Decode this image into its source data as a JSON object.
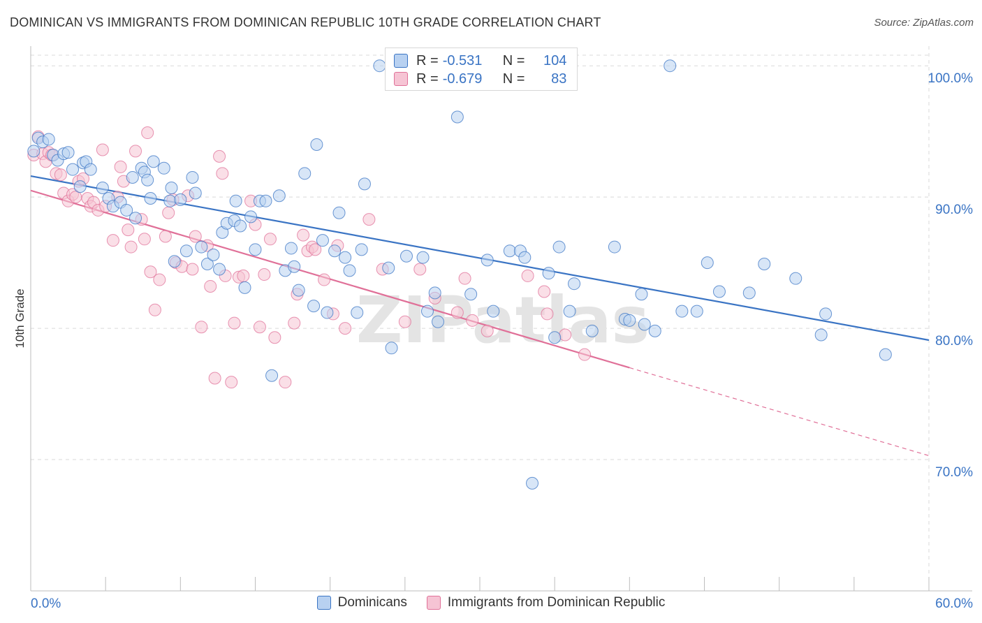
{
  "title": "DOMINICAN VS IMMIGRANTS FROM DOMINICAN REPUBLIC 10TH GRADE CORRELATION CHART",
  "source": "Source: ZipAtlas.com",
  "watermark": "ZIPatlas",
  "colors": {
    "blue": "#3a74c4",
    "blue_fill": "#b8d1f1",
    "pink": "#e07098",
    "pink_fill": "#f6c4d4",
    "grid": "#d9d9d9",
    "tick_label": "#3a74c4"
  },
  "stats": {
    "rows": [
      {
        "r_label": "R =",
        "r_value": "-0.531",
        "n_label": "N =",
        "n_value": "104",
        "color": "blue"
      },
      {
        "r_label": "R =",
        "r_value": "-0.679",
        "n_label": "N =",
        "n_value": "83",
        "color": "pink"
      }
    ]
  },
  "legend": {
    "items": [
      {
        "label": "Dominicans",
        "color": "blue"
      },
      {
        "label": "Immigrants from Dominican Republic",
        "color": "pink"
      }
    ]
  },
  "chart_data": {
    "type": "scatter",
    "title": "DOMINICAN VS IMMIGRANTS FROM DOMINICAN REPUBLIC 10TH GRADE CORRELATION CHART",
    "xlabel": "",
    "ylabel": "10th Grade",
    "xlim": [
      0,
      60
    ],
    "ylim": [
      60,
      101.5
    ],
    "x_tick_labels": [
      "0.0%",
      "60.0%"
    ],
    "y_ticks": [
      70,
      80,
      90,
      100
    ],
    "y_tick_labels": [
      "70.0%",
      "80.0%",
      "90.0%",
      "100.0%"
    ],
    "grid": true,
    "legend_position": "bottom",
    "series": [
      {
        "name": "Dominicans",
        "color": "blue",
        "r": -0.531,
        "n": 104,
        "trend": {
          "x": [
            0,
            60
          ],
          "y": [
            91.6,
            79.1
          ],
          "dashed_to": null
        },
        "points": [
          [
            0.2,
            93.5
          ],
          [
            0.5,
            94.5
          ],
          [
            0.8,
            94.2
          ],
          [
            1.2,
            94.4
          ],
          [
            1.5,
            93.2
          ],
          [
            1.8,
            92.8
          ],
          [
            2.2,
            93.3
          ],
          [
            2.5,
            93.4
          ],
          [
            2.8,
            92.1
          ],
          [
            3.3,
            90.8
          ],
          [
            3.5,
            92.6
          ],
          [
            3.7,
            92.7
          ],
          [
            4.0,
            92.1
          ],
          [
            4.8,
            90.7
          ],
          [
            5.2,
            89.9
          ],
          [
            5.5,
            89.3
          ],
          [
            6.0,
            89.6
          ],
          [
            6.4,
            89.0
          ],
          [
            6.8,
            91.5
          ],
          [
            7.0,
            88.4
          ],
          [
            7.4,
            92.2
          ],
          [
            7.6,
            91.9
          ],
          [
            7.8,
            91.3
          ],
          [
            8.0,
            89.9
          ],
          [
            8.2,
            92.7
          ],
          [
            8.9,
            92.2
          ],
          [
            9.3,
            89.7
          ],
          [
            9.4,
            90.7
          ],
          [
            9.6,
            85.1
          ],
          [
            10.0,
            89.8
          ],
          [
            10.4,
            85.9
          ],
          [
            10.8,
            91.5
          ],
          [
            11.0,
            90.3
          ],
          [
            11.4,
            86.2
          ],
          [
            11.8,
            84.9
          ],
          [
            12.2,
            85.6
          ],
          [
            12.6,
            84.5
          ],
          [
            12.8,
            87.3
          ],
          [
            13.1,
            88.0
          ],
          [
            13.6,
            88.2
          ],
          [
            13.7,
            89.7
          ],
          [
            14.0,
            87.8
          ],
          [
            14.3,
            83.1
          ],
          [
            14.7,
            88.5
          ],
          [
            15.0,
            86.0
          ],
          [
            15.3,
            89.7
          ],
          [
            15.7,
            89.7
          ],
          [
            16.1,
            76.4
          ],
          [
            16.6,
            90.1
          ],
          [
            17.0,
            84.4
          ],
          [
            17.4,
            86.1
          ],
          [
            17.6,
            84.7
          ],
          [
            17.9,
            82.9
          ],
          [
            18.3,
            91.8
          ],
          [
            18.9,
            81.7
          ],
          [
            19.1,
            94.0
          ],
          [
            19.5,
            86.7
          ],
          [
            19.8,
            81.2
          ],
          [
            20.3,
            85.9
          ],
          [
            20.6,
            88.8
          ],
          [
            21.0,
            85.4
          ],
          [
            21.3,
            84.4
          ],
          [
            21.8,
            81.2
          ],
          [
            22.1,
            86.0
          ],
          [
            22.3,
            91.0
          ],
          [
            23.3,
            100.0
          ],
          [
            23.9,
            84.6
          ],
          [
            24.1,
            78.5
          ],
          [
            24.5,
            100.0
          ],
          [
            25.1,
            85.5
          ],
          [
            26.2,
            85.4
          ],
          [
            26.5,
            81.3
          ],
          [
            27.0,
            82.7
          ],
          [
            27.2,
            80.5
          ],
          [
            28.5,
            96.1
          ],
          [
            29.4,
            82.6
          ],
          [
            29.8,
            100.0
          ],
          [
            30.5,
            85.2
          ],
          [
            30.9,
            81.3
          ],
          [
            32.0,
            85.9
          ],
          [
            32.7,
            85.9
          ],
          [
            33.0,
            85.4
          ],
          [
            33.5,
            68.2
          ],
          [
            34.3,
            100.0
          ],
          [
            34.6,
            84.2
          ],
          [
            35.0,
            79.3
          ],
          [
            35.3,
            86.2
          ],
          [
            36.0,
            81.3
          ],
          [
            36.3,
            83.4
          ],
          [
            37.5,
            79.8
          ],
          [
            39.0,
            86.2
          ],
          [
            39.7,
            80.7
          ],
          [
            40.0,
            80.6
          ],
          [
            40.8,
            82.6
          ],
          [
            41.0,
            80.3
          ],
          [
            41.7,
            79.8
          ],
          [
            42.7,
            100.0
          ],
          [
            43.5,
            81.3
          ],
          [
            44.5,
            81.3
          ],
          [
            45.2,
            85.0
          ],
          [
            46.0,
            82.8
          ],
          [
            48.0,
            82.7
          ],
          [
            49.0,
            84.9
          ],
          [
            51.1,
            83.8
          ],
          [
            52.8,
            79.5
          ],
          [
            53.1,
            81.1
          ],
          [
            57.1,
            78.0
          ]
        ]
      },
      {
        "name": "Immigrants from Dominican Republic",
        "color": "pink",
        "r": -0.679,
        "n": 83,
        "trend": {
          "x": [
            0,
            40
          ],
          "y": [
            90.5,
            77.0
          ],
          "dashed_to": [
            60,
            70.3
          ]
        },
        "points": [
          [
            0.2,
            93.2
          ],
          [
            0.5,
            94.6
          ],
          [
            0.8,
            93.3
          ],
          [
            1.0,
            92.7
          ],
          [
            1.2,
            93.4
          ],
          [
            1.4,
            93.2
          ],
          [
            1.7,
            91.8
          ],
          [
            2.0,
            91.7
          ],
          [
            2.2,
            90.3
          ],
          [
            2.5,
            89.7
          ],
          [
            2.8,
            90.2
          ],
          [
            3.0,
            90.0
          ],
          [
            3.2,
            91.2
          ],
          [
            3.5,
            91.4
          ],
          [
            3.8,
            89.9
          ],
          [
            4.0,
            89.3
          ],
          [
            4.2,
            89.6
          ],
          [
            4.5,
            89.0
          ],
          [
            4.8,
            93.6
          ],
          [
            5.0,
            89.3
          ],
          [
            5.5,
            86.7
          ],
          [
            5.8,
            90.0
          ],
          [
            6.0,
            92.3
          ],
          [
            6.2,
            91.2
          ],
          [
            6.5,
            87.5
          ],
          [
            6.7,
            86.2
          ],
          [
            7.0,
            93.5
          ],
          [
            7.4,
            88.3
          ],
          [
            7.6,
            86.8
          ],
          [
            7.8,
            94.9
          ],
          [
            8.0,
            84.3
          ],
          [
            8.3,
            81.4
          ],
          [
            8.6,
            83.7
          ],
          [
            9.0,
            87.0
          ],
          [
            9.2,
            88.8
          ],
          [
            9.5,
            89.8
          ],
          [
            9.7,
            85.0
          ],
          [
            10.1,
            84.7
          ],
          [
            10.5,
            90.1
          ],
          [
            10.8,
            84.5
          ],
          [
            11.0,
            87.0
          ],
          [
            11.4,
            80.1
          ],
          [
            11.8,
            86.3
          ],
          [
            12.0,
            83.2
          ],
          [
            12.3,
            76.2
          ],
          [
            12.6,
            93.1
          ],
          [
            12.8,
            91.8
          ],
          [
            13.0,
            84.0
          ],
          [
            13.4,
            75.9
          ],
          [
            13.6,
            80.4
          ],
          [
            13.9,
            83.9
          ],
          [
            14.2,
            84.0
          ],
          [
            14.7,
            89.7
          ],
          [
            15.0,
            87.9
          ],
          [
            15.3,
            80.1
          ],
          [
            15.6,
            84.1
          ],
          [
            16.0,
            86.8
          ],
          [
            16.3,
            79.3
          ],
          [
            17.0,
            75.9
          ],
          [
            17.6,
            80.4
          ],
          [
            17.8,
            82.6
          ],
          [
            18.2,
            87.1
          ],
          [
            18.5,
            85.9
          ],
          [
            18.8,
            86.2
          ],
          [
            19.0,
            86.0
          ],
          [
            19.6,
            83.7
          ],
          [
            20.2,
            81.1
          ],
          [
            20.5,
            86.3
          ],
          [
            21.0,
            80.0
          ],
          [
            22.6,
            88.3
          ],
          [
            23.5,
            84.5
          ],
          [
            25.0,
            80.5
          ],
          [
            26.0,
            84.5
          ],
          [
            27.0,
            82.3
          ],
          [
            28.5,
            81.2
          ],
          [
            29.0,
            83.8
          ],
          [
            29.5,
            80.6
          ],
          [
            30.5,
            79.8
          ],
          [
            33.2,
            84.0
          ],
          [
            34.3,
            82.8
          ],
          [
            34.5,
            81.1
          ],
          [
            35.7,
            79.5
          ],
          [
            37.0,
            78.0
          ]
        ]
      }
    ]
  }
}
